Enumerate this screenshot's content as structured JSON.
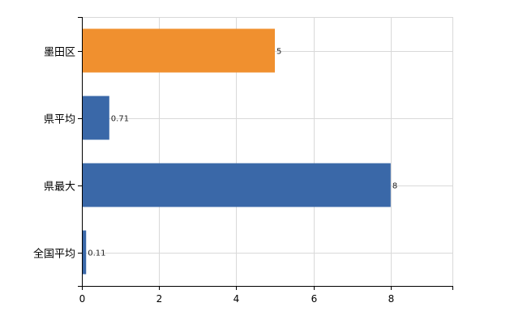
{
  "chart_data": {
    "type": "bar",
    "orientation": "horizontal",
    "categories": [
      "墨田区",
      "県平均",
      "県最大",
      "全国平均"
    ],
    "values": [
      5,
      0.71,
      8,
      0.11
    ],
    "value_labels": [
      "5",
      "0.71",
      "8",
      "0.11"
    ],
    "bar_colors": [
      "#f0902f",
      "#3a68a8",
      "#3a68a8",
      "#3a68a8"
    ],
    "xlim": [
      0,
      9.6
    ],
    "x_ticks": [
      0,
      2,
      4,
      6,
      8
    ],
    "x_tick_labels": [
      "0",
      "2",
      "4",
      "6",
      "8"
    ],
    "grid": true,
    "title": "",
    "xlabel": "",
    "ylabel": ""
  }
}
